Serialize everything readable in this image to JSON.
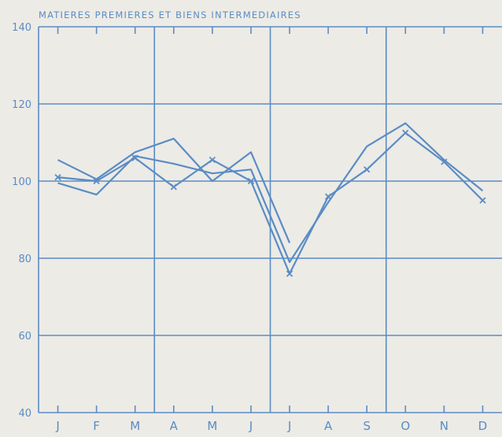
{
  "chart_data": {
    "type": "line",
    "title": "MATIERES PREMIERES ET BIENS INTERMEDIAIRES",
    "categories": [
      "J",
      "F",
      "M",
      "A",
      "M",
      "J",
      "J",
      "A",
      "S",
      "O",
      "N",
      "D"
    ],
    "ylim": [
      40,
      140
    ],
    "yticks": [
      40,
      60,
      80,
      100,
      120,
      140
    ],
    "grid": true,
    "series": [
      {
        "values": [
          105.5,
          100.5,
          107.5,
          111,
          100,
          107.5,
          84,
          null,
          null,
          null,
          null,
          null
        ]
      },
      {
        "values": [
          99.5,
          96.5,
          106.5,
          104.5,
          102,
          103,
          79,
          94.5,
          109,
          115,
          105.5,
          97.5
        ]
      },
      {
        "values": [
          101,
          100,
          106,
          98.5,
          105.5,
          100,
          76,
          96,
          103,
          112.5,
          105,
          95
        ]
      }
    ],
    "colors": {
      "line": "#5b8cc4",
      "background": "#ecebe6"
    }
  }
}
